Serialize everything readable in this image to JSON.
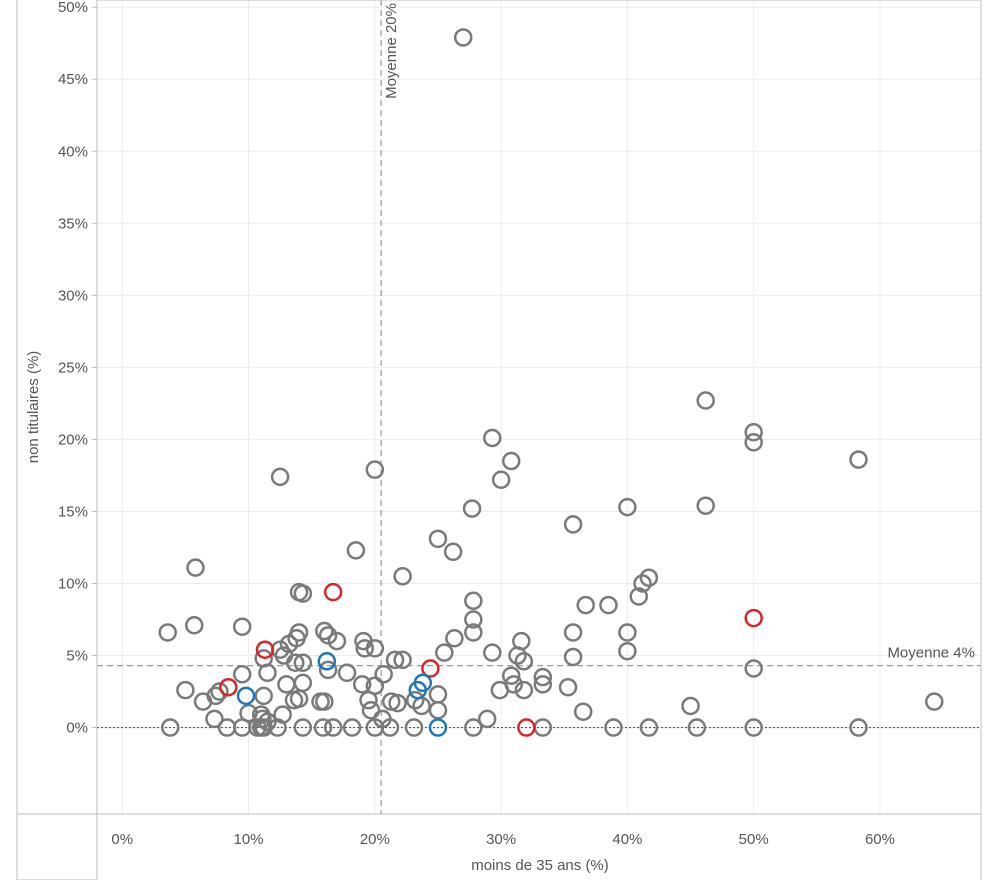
{
  "chart_data": {
    "type": "scatter",
    "xlabel": "moins de 35 ans (%)",
    "ylabel": "non titulaires (%)",
    "xlim": [
      -0.02,
      0.68
    ],
    "ylim": [
      -0.06,
      0.505
    ],
    "x_ticks": [
      0,
      0.1,
      0.2,
      0.3,
      0.4,
      0.5,
      0.6
    ],
    "x_tick_labels": [
      "0%",
      "10%",
      "20%",
      "30%",
      "40%",
      "50%",
      "60%"
    ],
    "y_ticks": [
      0,
      0.05,
      0.1,
      0.15,
      0.2,
      0.25,
      0.3,
      0.35,
      0.4,
      0.45,
      0.5
    ],
    "y_tick_labels": [
      "0%",
      "5%",
      "10%",
      "15%",
      "20%",
      "25%",
      "30%",
      "35%",
      "40%",
      "45%",
      "50%"
    ],
    "grid": true,
    "colors": {
      "grey": "#7a7a7a",
      "red": "#d62728",
      "blue": "#1f77b4"
    },
    "reference_lines": [
      {
        "axis": "x",
        "value": 0.205,
        "label": "Moyenne  20%",
        "style": "dashed"
      },
      {
        "axis": "y",
        "value": 0.043,
        "label": "Moyenne 4%",
        "style": "dashed"
      },
      {
        "axis": "y",
        "value": 0,
        "label": "",
        "style": "dotted"
      }
    ],
    "series": [
      {
        "color": "grey",
        "points": [
          [
            0.27,
            0.479
          ],
          [
            0.462,
            0.227
          ],
          [
            0.5,
            0.205
          ],
          [
            0.5,
            0.198
          ],
          [
            0.583,
            0.186
          ],
          [
            0.293,
            0.201
          ],
          [
            0.308,
            0.185
          ],
          [
            0.3,
            0.172
          ],
          [
            0.2,
            0.179
          ],
          [
            0.125,
            0.174
          ],
          [
            0.277,
            0.152
          ],
          [
            0.4,
            0.153
          ],
          [
            0.462,
            0.154
          ],
          [
            0.357,
            0.141
          ],
          [
            0.25,
            0.131
          ],
          [
            0.262,
            0.122
          ],
          [
            0.185,
            0.123
          ],
          [
            0.222,
            0.105
          ],
          [
            0.058,
            0.111
          ],
          [
            0.417,
            0.104
          ],
          [
            0.412,
            0.1
          ],
          [
            0.409,
            0.091
          ],
          [
            0.14,
            0.094
          ],
          [
            0.143,
            0.093
          ],
          [
            0.278,
            0.088
          ],
          [
            0.367,
            0.085
          ],
          [
            0.385,
            0.085
          ],
          [
            0.278,
            0.075
          ],
          [
            0.057,
            0.071
          ],
          [
            0.095,
            0.07
          ],
          [
            0.036,
            0.066
          ],
          [
            0.14,
            0.066
          ],
          [
            0.16,
            0.067
          ],
          [
            0.357,
            0.066
          ],
          [
            0.4,
            0.066
          ],
          [
            0.278,
            0.066
          ],
          [
            0.138,
            0.062
          ],
          [
            0.163,
            0.064
          ],
          [
            0.17,
            0.06
          ],
          [
            0.191,
            0.06
          ],
          [
            0.316,
            0.06
          ],
          [
            0.263,
            0.062
          ],
          [
            0.132,
            0.058
          ],
          [
            0.125,
            0.054
          ],
          [
            0.192,
            0.055
          ],
          [
            0.2,
            0.055
          ],
          [
            0.255,
            0.052
          ],
          [
            0.293,
            0.052
          ],
          [
            0.128,
            0.05
          ],
          [
            0.313,
            0.05
          ],
          [
            0.357,
            0.049
          ],
          [
            0.4,
            0.053
          ],
          [
            0.112,
            0.048
          ],
          [
            0.216,
            0.047
          ],
          [
            0.222,
            0.047
          ],
          [
            0.318,
            0.046
          ],
          [
            0.137,
            0.045
          ],
          [
            0.143,
            0.045
          ],
          [
            0.5,
            0.041
          ],
          [
            0.163,
            0.04
          ],
          [
            0.178,
            0.038
          ],
          [
            0.095,
            0.037
          ],
          [
            0.115,
            0.038
          ],
          [
            0.207,
            0.037
          ],
          [
            0.308,
            0.036
          ],
          [
            0.333,
            0.035
          ],
          [
            0.143,
            0.031
          ],
          [
            0.13,
            0.03
          ],
          [
            0.19,
            0.03
          ],
          [
            0.2,
            0.029
          ],
          [
            0.31,
            0.03
          ],
          [
            0.333,
            0.03
          ],
          [
            0.353,
            0.028
          ],
          [
            0.05,
            0.026
          ],
          [
            0.077,
            0.025
          ],
          [
            0.299,
            0.026
          ],
          [
            0.318,
            0.026
          ],
          [
            0.074,
            0.022
          ],
          [
            0.112,
            0.022
          ],
          [
            0.25,
            0.023
          ],
          [
            0.136,
            0.019
          ],
          [
            0.14,
            0.02
          ],
          [
            0.157,
            0.018
          ],
          [
            0.16,
            0.018
          ],
          [
            0.195,
            0.019
          ],
          [
            0.213,
            0.018
          ],
          [
            0.218,
            0.017
          ],
          [
            0.232,
            0.019
          ],
          [
            0.237,
            0.015
          ],
          [
            0.064,
            0.018
          ],
          [
            0.45,
            0.015
          ],
          [
            0.643,
            0.018
          ],
          [
            0.197,
            0.012
          ],
          [
            0.25,
            0.012
          ],
          [
            0.1,
            0.01
          ],
          [
            0.11,
            0.009
          ],
          [
            0.127,
            0.009
          ],
          [
            0.365,
            0.011
          ],
          [
            0.073,
            0.006
          ],
          [
            0.111,
            0.006
          ],
          [
            0.206,
            0.006
          ],
          [
            0.115,
            0.004
          ],
          [
            0.289,
            0.006
          ],
          [
            0.038,
            0.0
          ],
          [
            0.083,
            0.0
          ],
          [
            0.095,
            0.0
          ],
          [
            0.107,
            0.0
          ],
          [
            0.11,
            0.0
          ],
          [
            0.112,
            0.0
          ],
          [
            0.123,
            0.0
          ],
          [
            0.143,
            0.0
          ],
          [
            0.159,
            0.0
          ],
          [
            0.167,
            0.0
          ],
          [
            0.182,
            0.0
          ],
          [
            0.2,
            0.0
          ],
          [
            0.212,
            0.0
          ],
          [
            0.231,
            0.0
          ],
          [
            0.278,
            0.0
          ],
          [
            0.333,
            0.0
          ],
          [
            0.389,
            0.0
          ],
          [
            0.417,
            0.0
          ],
          [
            0.455,
            0.0
          ],
          [
            0.5,
            0.0
          ],
          [
            0.583,
            0.0
          ]
        ]
      },
      {
        "color": "red",
        "points": [
          [
            0.167,
            0.094
          ],
          [
            0.5,
            0.076
          ],
          [
            0.113,
            0.054
          ],
          [
            0.244,
            0.041
          ],
          [
            0.084,
            0.028
          ],
          [
            0.32,
            0.0
          ]
        ]
      },
      {
        "color": "blue",
        "points": [
          [
            0.162,
            0.046
          ],
          [
            0.238,
            0.031
          ],
          [
            0.234,
            0.026
          ],
          [
            0.098,
            0.022
          ],
          [
            0.25,
            0.0
          ]
        ]
      }
    ]
  }
}
